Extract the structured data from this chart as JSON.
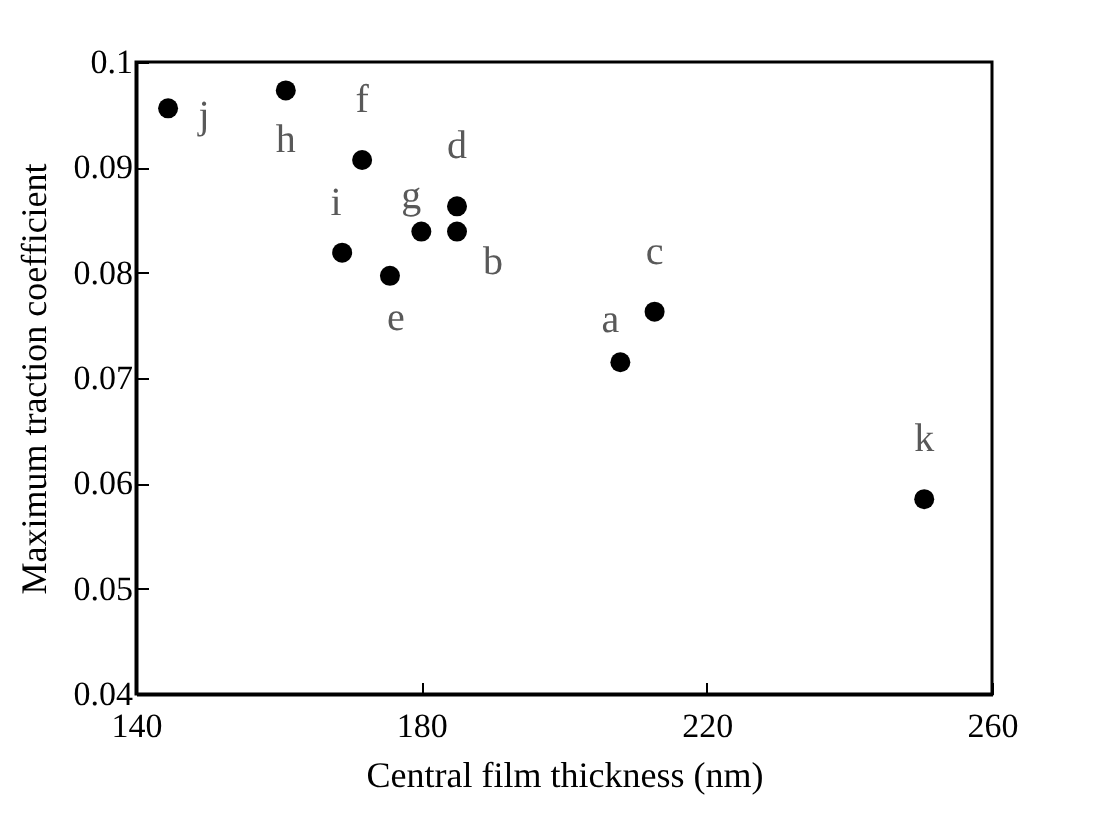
{
  "chart_data": {
    "type": "scatter",
    "xlabel": "Central film thickness (nm)",
    "ylabel": "Maximum traction coefficient",
    "x": [
      144.5,
      161.0,
      171.7,
      168.9,
      180.0,
      185.0,
      185.0,
      175.6,
      207.9,
      212.7,
      250.5
    ],
    "series": [
      {
        "color": "#000000",
        "values": [
          0.0956,
          0.0973,
          0.0907,
          0.0819,
          0.0839,
          0.0863,
          0.0839,
          0.0797,
          0.0715,
          0.0763,
          0.0585
        ]
      }
    ],
    "annotations": [
      {
        "text": "j",
        "x": 144.5,
        "y": 0.0956
      },
      {
        "text": "h",
        "x": 161.0,
        "y": 0.0973
      },
      {
        "text": "f",
        "x": 171.7,
        "y": 0.0907
      },
      {
        "text": "i",
        "x": 168.9,
        "y": 0.0819
      },
      {
        "text": "g",
        "x": 180.0,
        "y": 0.0839
      },
      {
        "text": "d",
        "x": 185.0,
        "y": 0.0863
      },
      {
        "text": "b",
        "x": 185.0,
        "y": 0.0839
      },
      {
        "text": "e",
        "x": 175.6,
        "y": 0.0797
      },
      {
        "text": "a",
        "x": 207.9,
        "y": 0.0715
      },
      {
        "text": "c",
        "x": 212.7,
        "y": 0.0763
      },
      {
        "text": "k",
        "x": 250.5,
        "y": 0.0585
      }
    ],
    "xlim": [
      140,
      260
    ],
    "xticks": [
      140,
      180,
      220,
      260
    ],
    "ylim": [
      0.04,
      0.1
    ],
    "yticks": [
      0.04,
      0.05,
      0.06,
      0.07,
      0.08,
      0.09,
      0.1
    ],
    "marker": "circle",
    "grid": false
  }
}
